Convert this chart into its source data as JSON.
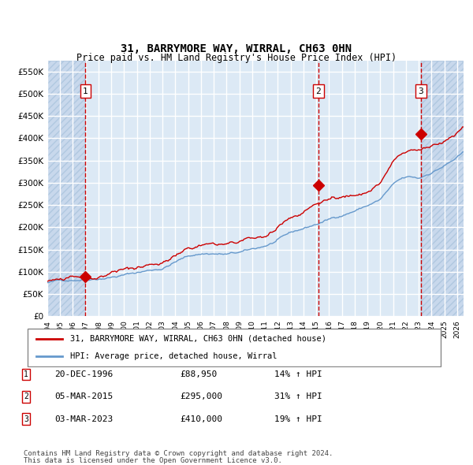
{
  "title": "31, BARRYMORE WAY, WIRRAL, CH63 0HN",
  "subtitle": "Price paid vs. HM Land Registry's House Price Index (HPI)",
  "legend_red": "31, BARRYMORE WAY, WIRRAL, CH63 0HN (detached house)",
  "legend_blue": "HPI: Average price, detached house, Wirral",
  "footer1": "Contains HM Land Registry data © Crown copyright and database right 2024.",
  "footer2": "This data is licensed under the Open Government Licence v3.0.",
  "sales": [
    {
      "num": 1,
      "date": "20-DEC-1996",
      "price": 88950,
      "pct": "14%",
      "dir": "↑",
      "x_year": 1996.97
    },
    {
      "num": 2,
      "date": "05-MAR-2015",
      "price": 295000,
      "pct": "31%",
      "dir": "↑",
      "x_year": 2015.17
    },
    {
      "num": 3,
      "date": "03-MAR-2023",
      "price": 410000,
      "pct": "19%",
      "dir": "↑",
      "x_year": 2023.17
    }
  ],
  "ylim": [
    0,
    575000
  ],
  "xlim_start": 1994.0,
  "xlim_end": 2026.5,
  "bg_chart": "#dce9f5",
  "bg_hatch_left": "#c8d8ec",
  "bg_hatch_right": "#c8d8ec",
  "grid_color": "#ffffff",
  "red_color": "#cc0000",
  "blue_color": "#6699cc",
  "dashed_color": "#cc0000",
  "marker_color": "#cc0000",
  "yticks": [
    0,
    50000,
    100000,
    150000,
    200000,
    250000,
    300000,
    350000,
    400000,
    450000,
    500000,
    550000
  ],
  "ytick_labels": [
    "£0",
    "£50K",
    "£100K",
    "£150K",
    "£200K",
    "£250K",
    "£300K",
    "£350K",
    "£400K",
    "£450K",
    "£500K",
    "£550K"
  ],
  "xticks": [
    1994,
    1995,
    1996,
    1997,
    1998,
    1999,
    2000,
    2001,
    2002,
    2003,
    2004,
    2005,
    2006,
    2007,
    2008,
    2009,
    2010,
    2011,
    2012,
    2013,
    2014,
    2015,
    2016,
    2017,
    2018,
    2019,
    2020,
    2021,
    2022,
    2023,
    2024,
    2025,
    2026
  ]
}
